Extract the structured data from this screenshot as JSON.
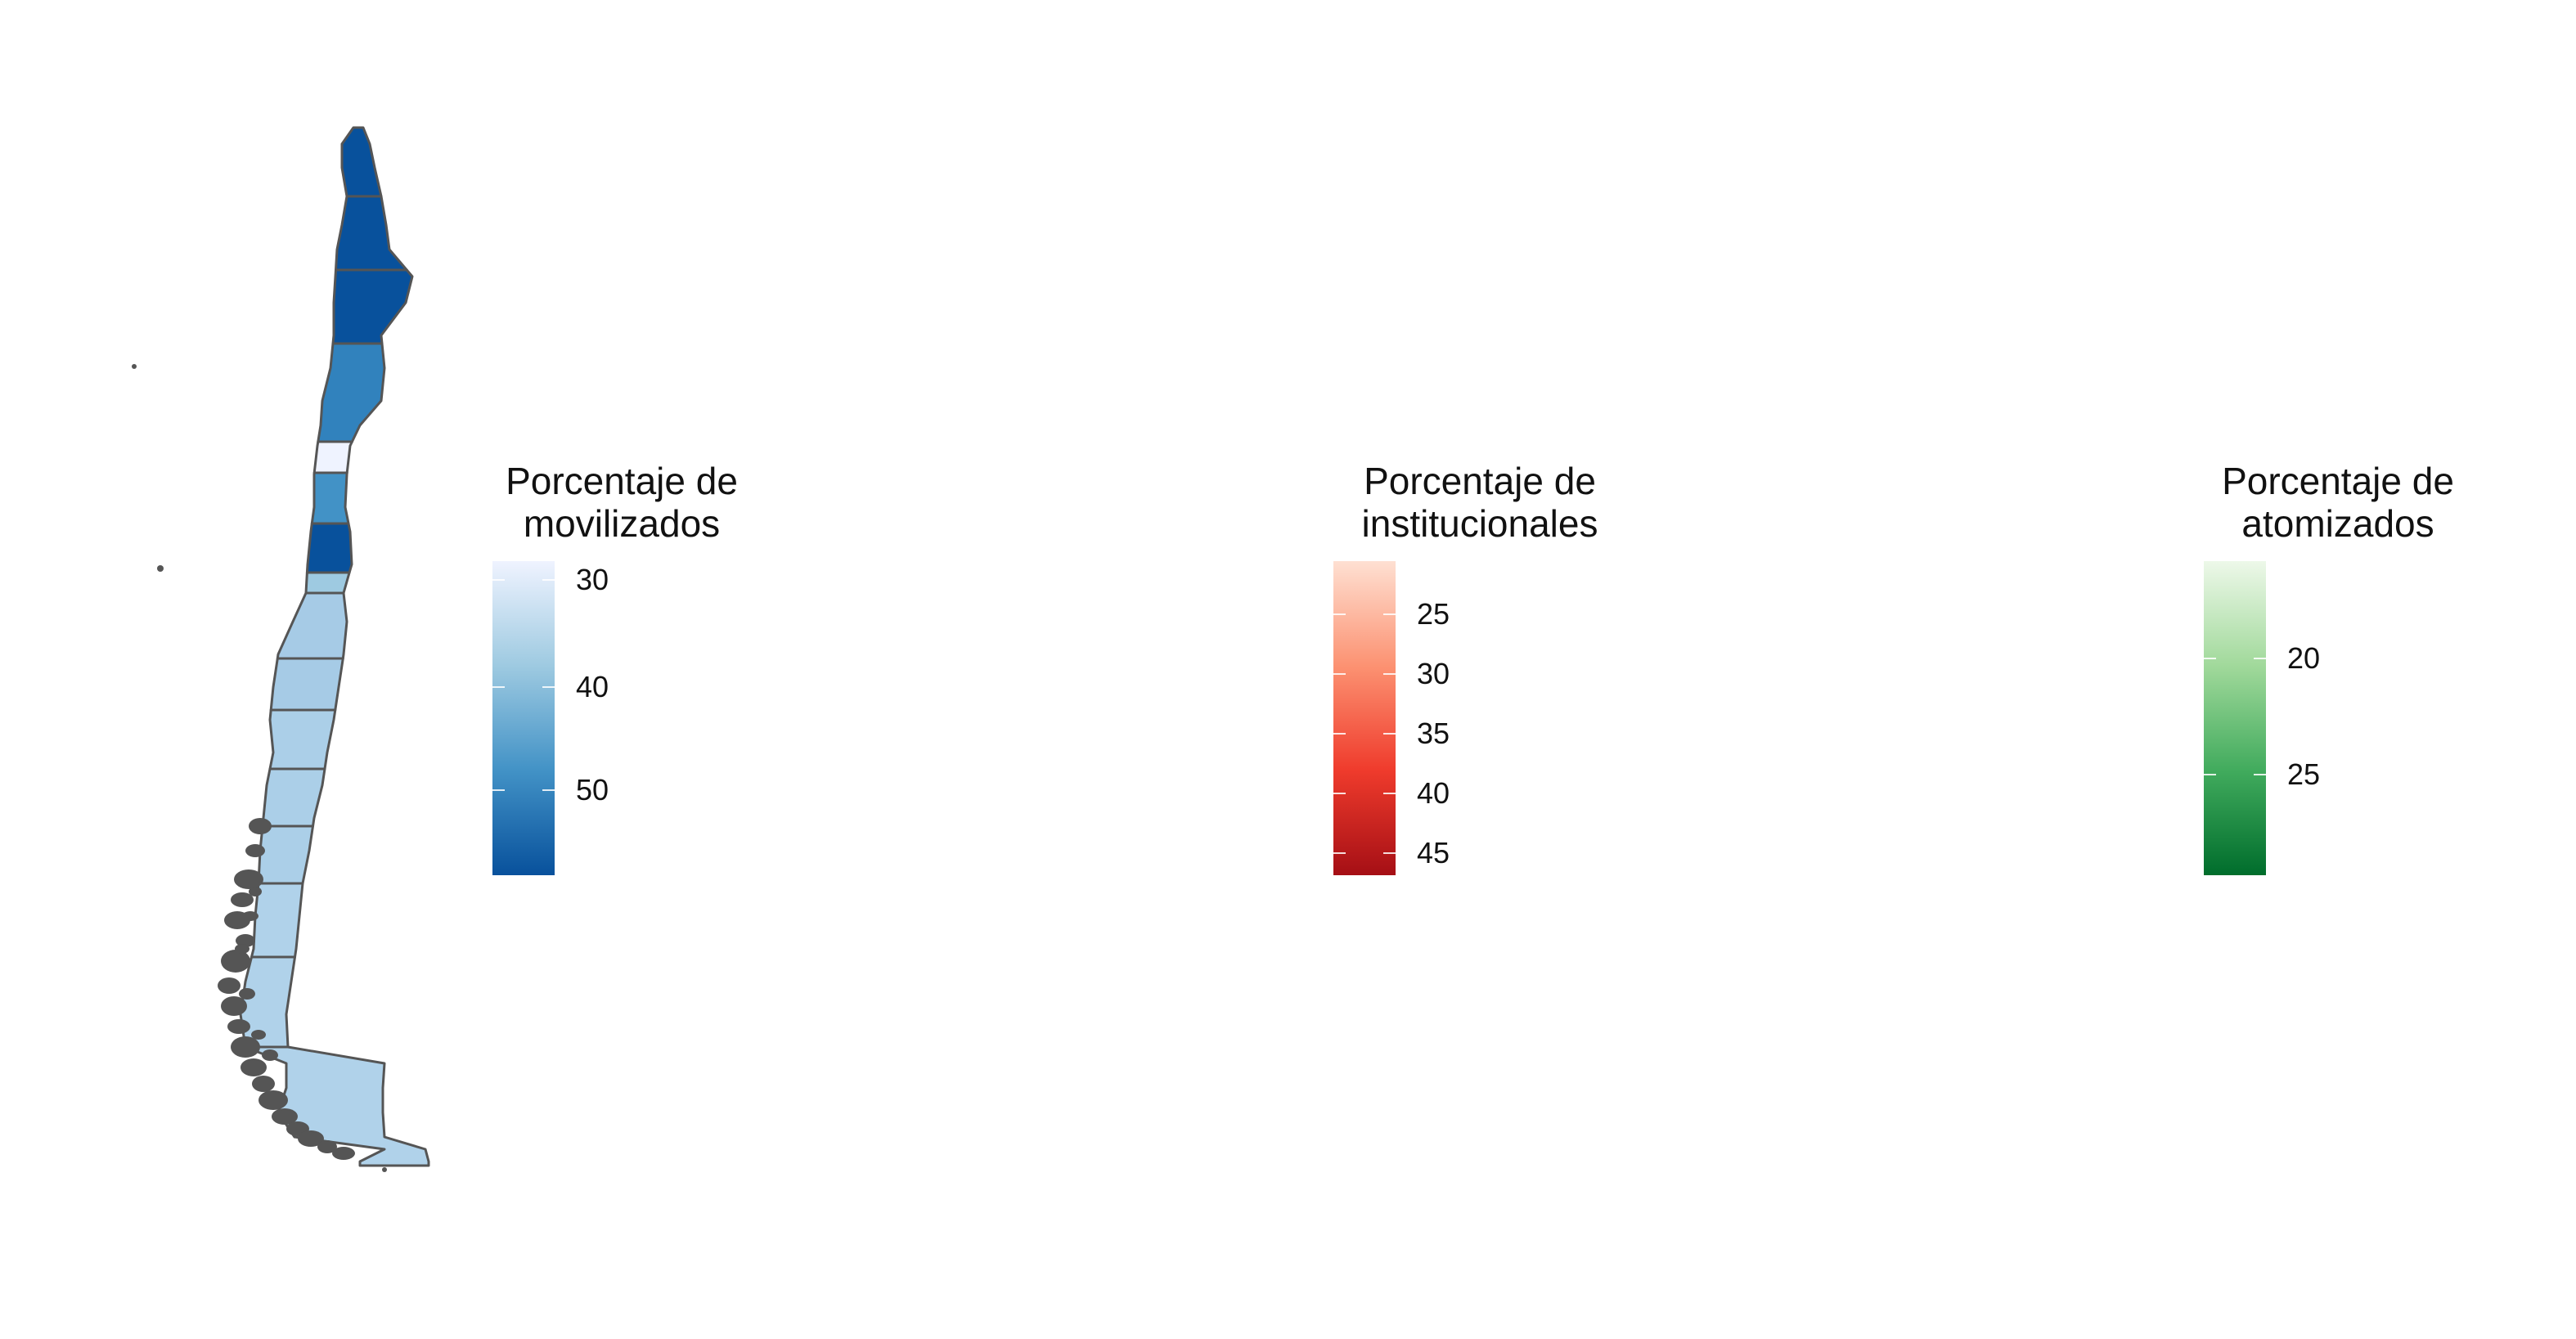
{
  "panels": [
    {
      "id": "movilizados",
      "legend": {
        "title_lines": [
          "Porcentaje de",
          "movilizados"
        ],
        "ticks": [
          {
            "label": "30",
            "frac": 0.06
          },
          {
            "label": "40",
            "frac": 0.4
          },
          {
            "label": "50",
            "frac": 0.73
          }
        ],
        "colors": [
          "#eff3ff",
          "#9ecae1",
          "#4292c6",
          "#08519c"
        ]
      },
      "region_colors": [
        "#08519c",
        "#08519c",
        "#08519c",
        "#3182bd",
        "#eff3ff",
        "#4292c6",
        "#08519c",
        "#9ecae1",
        "#a6cbe6",
        "#a6cbe6",
        "#abcfe8",
        "#abcfe8",
        "#abcfe8",
        "#b0d2ea",
        "#b0d2ea",
        "#b0d2ea"
      ]
    },
    {
      "id": "institucionales",
      "legend": {
        "title_lines": [
          "Porcentaje de",
          "institucionales"
        ],
        "ticks": [
          {
            "label": "25",
            "frac": 0.17
          },
          {
            "label": "30",
            "frac": 0.36
          },
          {
            "label": "35",
            "frac": 0.55
          },
          {
            "label": "40",
            "frac": 0.74
          },
          {
            "label": "45",
            "frac": 0.93
          }
        ],
        "colors": [
          "#fee0d2",
          "#fc9272",
          "#ef3b2c",
          "#a50f15"
        ]
      },
      "region_colors": [
        "#fcab8f",
        "#fcab8f",
        "#fcab8f",
        "#fdc9b4",
        "#fdd5c4",
        "#d42020",
        "#fcab8f",
        "#fee0d2",
        "#e8382c",
        "#e22e27",
        "#e22e27",
        "#a50f15",
        "#a50f15",
        "#a50f15",
        "#a50f15",
        "#a50f15"
      ]
    },
    {
      "id": "atomizados",
      "legend": {
        "title_lines": [
          "Porcentaje de",
          "atomizados"
        ],
        "ticks": [
          {
            "label": "20",
            "frac": 0.31
          },
          {
            "label": "25",
            "frac": 0.68
          }
        ],
        "colors": [
          "#edf8e9",
          "#a1d99b",
          "#41ab5d",
          "#006d2c"
        ]
      },
      "region_colors": [
        "#edf8e9",
        "#edf8e9",
        "#edf8e9",
        "#41ab5d",
        "#006d2c",
        "#4ea85f",
        "#41ab5d",
        "#5cb86a",
        "#56b366",
        "#56b366",
        "#5cb86a",
        "#daf0d4",
        "#daf0d4",
        "#daf0d4",
        "#daf0d4",
        "#daf0d4"
      ]
    }
  ]
}
